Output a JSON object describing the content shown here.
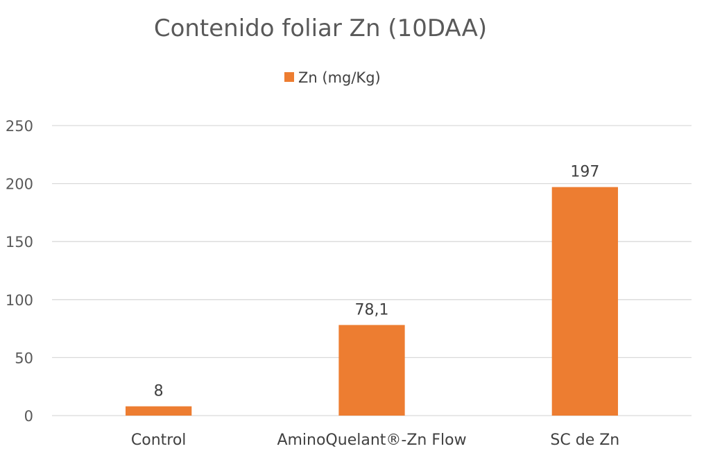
{
  "chart_data": {
    "type": "bar",
    "title": "Contenido foliar Zn (10DAA)",
    "categories": [
      "Control",
      "AminoQuelant®-Zn Flow",
      "SC de Zn"
    ],
    "series": [
      {
        "name": "Zn (mg/Kg)",
        "values": [
          8,
          78.1,
          197
        ],
        "value_labels": [
          "8",
          "78,1",
          "197"
        ],
        "color": "#ED7D31"
      }
    ],
    "ylim": [
      0,
      250
    ],
    "yticks": [
      0,
      50,
      100,
      150,
      200,
      250
    ],
    "ytick_labels": [
      "0",
      "50",
      "100",
      "150",
      "200",
      "250"
    ],
    "xlabel": "",
    "ylabel": "",
    "legend": "top-center",
    "grid": true
  }
}
